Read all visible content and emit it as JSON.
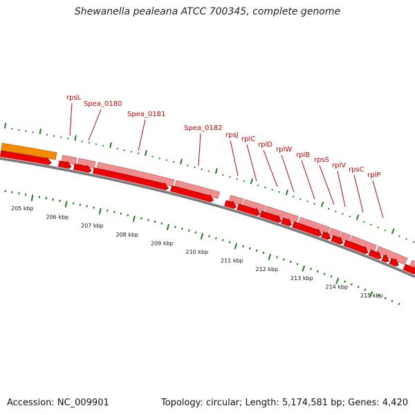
{
  "title": "Shewanella pealeana ATCC 700345, complete genome",
  "footer": {
    "accession": "Accession: NC_009901",
    "summary": "Topology: circular; Length: 5,174,581 bp; Genes: 4,420"
  },
  "colors": {
    "gc_tick": "#1b7d1b",
    "backbone": "#7a7a7a",
    "cds_bright": "#ee0000",
    "cds_pale": "#ef8e8e",
    "orange_feature": "#f28c00",
    "label": "#cc0000"
  },
  "scale_labels": [
    "205 kbp",
    "206 kbp",
    "207 kbp",
    "208 kbp",
    "209 kbp",
    "210 kbp",
    "211 kbp",
    "212 kbp",
    "213 kbp",
    "214 kbp",
    "215 kbp"
  ],
  "gene_labels": [
    "rpsL",
    "Spea_0180",
    "Spea_0181",
    "Spea_0182",
    "rpsJ",
    "rplC",
    "rplD",
    "rplW",
    "rplB",
    "rpsS",
    "rplV",
    "rpsC",
    "rplP"
  ]
}
